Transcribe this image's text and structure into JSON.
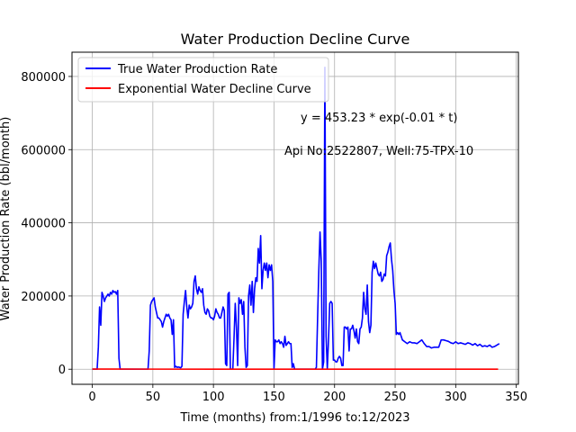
{
  "chart_data": {
    "type": "line",
    "title": "Water Production Decline Curve",
    "xlabel": "Time (months) from:1/1996 to:12/2023",
    "ylabel": "Water Production Rate (bbl/month)",
    "xlim": [
      -16.75,
      351.75
    ],
    "ylim": [
      -41250,
      866250
    ],
    "xticks": [
      0,
      50,
      100,
      150,
      200,
      250,
      300,
      350
    ],
    "yticks": [
      0,
      200000,
      400000,
      600000,
      800000
    ],
    "grid": true,
    "legend_position": "top-left",
    "annotations": [
      "y = 453.23 * exp(-0.01 * t)",
      "Api No:2522807, Well:75-TPX-10"
    ],
    "series": [
      {
        "name": "True Water Production Rate",
        "color": "#0000ff",
        "points": [
          [
            0,
            0
          ],
          [
            4,
            0
          ],
          [
            5,
            60000
          ],
          [
            6,
            170000
          ],
          [
            7,
            120000
          ],
          [
            8,
            210000
          ],
          [
            9,
            200000
          ],
          [
            10,
            185000
          ],
          [
            11,
            195000
          ],
          [
            12,
            200000
          ],
          [
            13,
            205000
          ],
          [
            14,
            200000
          ],
          [
            15,
            210000
          ],
          [
            16,
            205000
          ],
          [
            17,
            215000
          ],
          [
            18,
            210000
          ],
          [
            19,
            212000
          ],
          [
            20,
            205000
          ],
          [
            21,
            215000
          ],
          [
            22,
            30000
          ],
          [
            23,
            0
          ],
          [
            30,
            0
          ],
          [
            40,
            0
          ],
          [
            46,
            0
          ],
          [
            47,
            50000
          ],
          [
            48,
            175000
          ],
          [
            49,
            185000
          ],
          [
            50,
            190000
          ],
          [
            51,
            195000
          ],
          [
            52,
            170000
          ],
          [
            53,
            155000
          ],
          [
            54,
            140000
          ],
          [
            55,
            140000
          ],
          [
            56,
            135000
          ],
          [
            57,
            130000
          ],
          [
            58,
            115000
          ],
          [
            59,
            130000
          ],
          [
            60,
            140000
          ],
          [
            61,
            150000
          ],
          [
            62,
            145000
          ],
          [
            63,
            150000
          ],
          [
            64,
            140000
          ],
          [
            65,
            135000
          ],
          [
            66,
            95000
          ],
          [
            67,
            135000
          ],
          [
            68,
            5000
          ],
          [
            69,
            8000
          ],
          [
            70,
            5000
          ],
          [
            71,
            6000
          ],
          [
            72,
            5000
          ],
          [
            73,
            4000
          ],
          [
            74,
            8000
          ],
          [
            75,
            150000
          ],
          [
            76,
            185000
          ],
          [
            77,
            215000
          ],
          [
            78,
            170000
          ],
          [
            79,
            140000
          ],
          [
            80,
            175000
          ],
          [
            81,
            165000
          ],
          [
            82,
            170000
          ],
          [
            83,
            180000
          ],
          [
            84,
            240000
          ],
          [
            85,
            255000
          ],
          [
            86,
            220000
          ],
          [
            87,
            205000
          ],
          [
            88,
            225000
          ],
          [
            89,
            215000
          ],
          [
            90,
            210000
          ],
          [
            91,
            220000
          ],
          [
            92,
            175000
          ],
          [
            93,
            155000
          ],
          [
            94,
            150000
          ],
          [
            95,
            165000
          ],
          [
            96,
            160000
          ],
          [
            97,
            145000
          ],
          [
            98,
            140000
          ],
          [
            99,
            140000
          ],
          [
            100,
            135000
          ],
          [
            101,
            145000
          ],
          [
            102,
            165000
          ],
          [
            103,
            155000
          ],
          [
            104,
            150000
          ],
          [
            105,
            140000
          ],
          [
            106,
            140000
          ],
          [
            107,
            155000
          ],
          [
            108,
            170000
          ],
          [
            109,
            160000
          ],
          [
            110,
            15000
          ],
          [
            111,
            10000
          ],
          [
            112,
            205000
          ],
          [
            113,
            210000
          ],
          [
            114,
            0
          ],
          [
            115,
            0
          ],
          [
            116,
            0
          ],
          [
            117,
            85000
          ],
          [
            118,
            180000
          ],
          [
            119,
            115000
          ],
          [
            120,
            10000
          ],
          [
            121,
            195000
          ],
          [
            122,
            180000
          ],
          [
            123,
            190000
          ],
          [
            124,
            150000
          ],
          [
            125,
            185000
          ],
          [
            126,
            60000
          ],
          [
            127,
            5000
          ],
          [
            128,
            10000
          ],
          [
            129,
            200000
          ],
          [
            130,
            230000
          ],
          [
            131,
            175000
          ],
          [
            132,
            240000
          ],
          [
            133,
            155000
          ],
          [
            134,
            220000
          ],
          [
            135,
            250000
          ],
          [
            136,
            240000
          ],
          [
            137,
            330000
          ],
          [
            138,
            290000
          ],
          [
            139,
            365000
          ],
          [
            140,
            220000
          ],
          [
            141,
            270000
          ],
          [
            142,
            290000
          ],
          [
            143,
            270000
          ],
          [
            144,
            290000
          ],
          [
            145,
            250000
          ],
          [
            146,
            285000
          ],
          [
            147,
            270000
          ],
          [
            148,
            285000
          ],
          [
            149,
            240000
          ],
          [
            150,
            0
          ],
          [
            151,
            80000
          ],
          [
            152,
            75000
          ],
          [
            153,
            75000
          ],
          [
            154,
            80000
          ],
          [
            155,
            70000
          ],
          [
            156,
            75000
          ],
          [
            157,
            70000
          ],
          [
            158,
            60000
          ],
          [
            159,
            90000
          ],
          [
            160,
            65000
          ],
          [
            161,
            70000
          ],
          [
            162,
            75000
          ],
          [
            163,
            70000
          ],
          [
            164,
            70000
          ],
          [
            165,
            5000
          ],
          [
            166,
            15000
          ],
          [
            167,
            0
          ],
          [
            170,
            0
          ],
          [
            180,
            0
          ],
          [
            184,
            0
          ],
          [
            185,
            5000
          ],
          [
            186,
            140000
          ],
          [
            187,
            270000
          ],
          [
            188,
            375000
          ],
          [
            189,
            295000
          ],
          [
            190,
            0
          ],
          [
            191,
            20000
          ],
          [
            192,
            825000
          ],
          [
            193,
            90000
          ],
          [
            194,
            0
          ],
          [
            195,
            80000
          ],
          [
            196,
            180000
          ],
          [
            197,
            185000
          ],
          [
            198,
            180000
          ],
          [
            199,
            25000
          ],
          [
            200,
            25000
          ],
          [
            201,
            20000
          ],
          [
            202,
            20000
          ],
          [
            203,
            30000
          ],
          [
            204,
            35000
          ],
          [
            205,
            30000
          ],
          [
            206,
            10000
          ],
          [
            207,
            10000
          ],
          [
            208,
            115000
          ],
          [
            209,
            115000
          ],
          [
            210,
            110000
          ],
          [
            211,
            115000
          ],
          [
            212,
            50000
          ],
          [
            213,
            110000
          ],
          [
            214,
            110000
          ],
          [
            215,
            120000
          ],
          [
            216,
            105000
          ],
          [
            217,
            85000
          ],
          [
            218,
            110000
          ],
          [
            219,
            75000
          ],
          [
            220,
            70000
          ],
          [
            221,
            110000
          ],
          [
            222,
            115000
          ],
          [
            223,
            140000
          ],
          [
            224,
            210000
          ],
          [
            225,
            165000
          ],
          [
            226,
            150000
          ],
          [
            227,
            230000
          ],
          [
            228,
            130000
          ],
          [
            229,
            100000
          ],
          [
            230,
            120000
          ],
          [
            231,
            265000
          ],
          [
            232,
            295000
          ],
          [
            233,
            275000
          ],
          [
            234,
            290000
          ],
          [
            235,
            275000
          ],
          [
            236,
            260000
          ],
          [
            237,
            255000
          ],
          [
            238,
            265000
          ],
          [
            239,
            240000
          ],
          [
            240,
            245000
          ],
          [
            241,
            260000
          ],
          [
            242,
            255000
          ],
          [
            243,
            310000
          ],
          [
            244,
            320000
          ],
          [
            245,
            335000
          ],
          [
            246,
            345000
          ],
          [
            247,
            300000
          ],
          [
            248,
            270000
          ],
          [
            249,
            215000
          ],
          [
            250,
            180000
          ],
          [
            251,
            95000
          ],
          [
            252,
            100000
          ],
          [
            253,
            95000
          ],
          [
            254,
            100000
          ],
          [
            255,
            90000
          ],
          [
            256,
            80000
          ],
          [
            258,
            75000
          ],
          [
            260,
            70000
          ],
          [
            262,
            75000
          ],
          [
            264,
            72000
          ],
          [
            266,
            72000
          ],
          [
            268,
            70000
          ],
          [
            270,
            75000
          ],
          [
            272,
            80000
          ],
          [
            274,
            70000
          ],
          [
            276,
            62000
          ],
          [
            278,
            62000
          ],
          [
            280,
            58000
          ],
          [
            282,
            60000
          ],
          [
            284,
            60000
          ],
          [
            286,
            60000
          ],
          [
            288,
            80000
          ],
          [
            290,
            80000
          ],
          [
            292,
            78000
          ],
          [
            294,
            76000
          ],
          [
            296,
            72000
          ],
          [
            298,
            70000
          ],
          [
            300,
            75000
          ],
          [
            302,
            70000
          ],
          [
            304,
            72000
          ],
          [
            306,
            70000
          ],
          [
            308,
            68000
          ],
          [
            310,
            72000
          ],
          [
            312,
            70000
          ],
          [
            314,
            66000
          ],
          [
            316,
            70000
          ],
          [
            318,
            64000
          ],
          [
            320,
            68000
          ],
          [
            322,
            62000
          ],
          [
            324,
            64000
          ],
          [
            326,
            62000
          ],
          [
            328,
            66000
          ],
          [
            330,
            60000
          ],
          [
            332,
            62000
          ],
          [
            334,
            66000
          ],
          [
            336,
            70000
          ]
        ]
      },
      {
        "name": "Exponential Water Decline Curve",
        "color": "#ff0000",
        "points": [
          [
            0,
            453
          ],
          [
            50,
            275
          ],
          [
            100,
            167
          ],
          [
            150,
            101
          ],
          [
            200,
            61
          ],
          [
            250,
            37
          ],
          [
            300,
            22
          ],
          [
            335,
            16
          ]
        ]
      }
    ]
  }
}
